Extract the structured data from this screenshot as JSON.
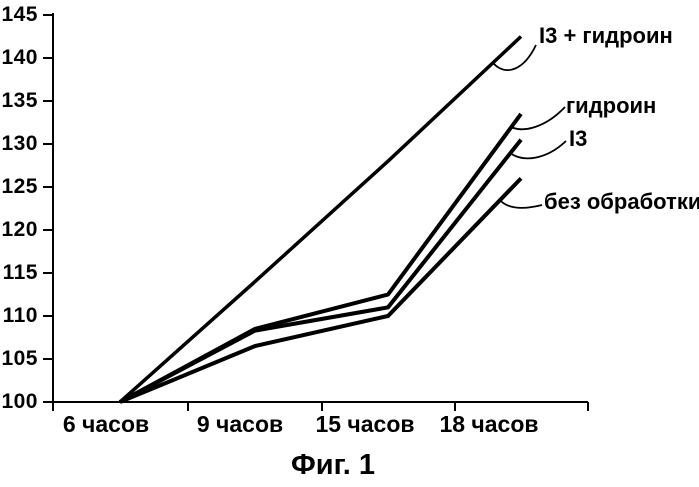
{
  "chart_data": {
    "type": "line",
    "caption": "Фиг. 1",
    "categories": [
      "6 часов",
      "9 часов",
      "15 часов",
      "18 часов"
    ],
    "series": [
      {
        "name": "I3 + гидроин",
        "values": [
          100,
          114,
          128,
          142.5
        ]
      },
      {
        "name": "гидроин",
        "values": [
          100,
          108.5,
          112.5,
          133.5
        ]
      },
      {
        "name": "I3",
        "values": [
          100,
          108.3,
          111,
          130.5
        ]
      },
      {
        "name": "без обработки",
        "values": [
          100,
          106.5,
          110,
          126
        ]
      }
    ],
    "xlabel": "",
    "ylabel": "",
    "ylim": [
      100,
      145
    ],
    "y_tick_labels": [
      145,
      140,
      135,
      130,
      125,
      120,
      115,
      110,
      105,
      100
    ],
    "grid": false,
    "legend": "inline-annotations-with-leader-lines",
    "ink_color": "#000000",
    "background_color": "#ffffff"
  }
}
